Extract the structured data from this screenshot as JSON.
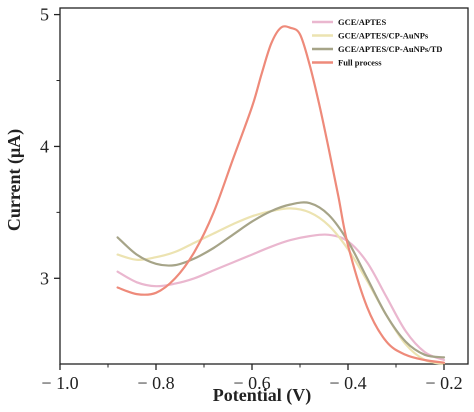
{
  "chart_data": {
    "type": "line",
    "xlabel": "Potential (V)",
    "ylabel": "Current (μA)",
    "xlim": [
      -1.0,
      -0.15
    ],
    "ylim": [
      2.35,
      5.05
    ],
    "xticks": [
      -1.0,
      -0.8,
      -0.6,
      -0.4,
      -0.2
    ],
    "xtick_labels": [
      "− 1.0",
      "− 0.8",
      "− 0.6",
      "− 0.4",
      "− 0.2"
    ],
    "yticks": [
      3,
      4,
      5
    ],
    "ytick_labels": [
      "3",
      "4",
      "5"
    ],
    "grid": false,
    "legend": "top-right",
    "series": [
      {
        "name": "GCE/APTES",
        "color": "#eab7cf",
        "x": [
          -0.88,
          -0.84,
          -0.8,
          -0.76,
          -0.72,
          -0.68,
          -0.64,
          -0.6,
          -0.56,
          -0.52,
          -0.48,
          -0.44,
          -0.4,
          -0.36,
          -0.32,
          -0.28,
          -0.24,
          -0.2
        ],
        "y": [
          3.05,
          2.97,
          2.94,
          2.96,
          3.0,
          3.06,
          3.12,
          3.18,
          3.24,
          3.29,
          3.32,
          3.33,
          3.28,
          3.12,
          2.86,
          2.6,
          2.44,
          2.38
        ]
      },
      {
        "name": "GCE/APTES/CP-AuNPs",
        "color": "#ece3b1",
        "x": [
          -0.88,
          -0.84,
          -0.8,
          -0.76,
          -0.72,
          -0.68,
          -0.64,
          -0.6,
          -0.56,
          -0.52,
          -0.48,
          -0.44,
          -0.4,
          -0.36,
          -0.32,
          -0.28,
          -0.24,
          -0.2
        ],
        "y": [
          3.18,
          3.14,
          3.16,
          3.2,
          3.27,
          3.34,
          3.41,
          3.47,
          3.51,
          3.53,
          3.5,
          3.4,
          3.22,
          2.98,
          2.72,
          2.5,
          2.38,
          2.35
        ]
      },
      {
        "name": "GCE/APTES/CP-AuNPs/TD",
        "color": "#a6a488",
        "x": [
          -0.88,
          -0.84,
          -0.8,
          -0.76,
          -0.72,
          -0.68,
          -0.64,
          -0.6,
          -0.56,
          -0.52,
          -0.48,
          -0.44,
          -0.4,
          -0.36,
          -0.32,
          -0.28,
          -0.24,
          -0.2
        ],
        "y": [
          3.31,
          3.18,
          3.11,
          3.1,
          3.15,
          3.23,
          3.33,
          3.43,
          3.51,
          3.56,
          3.57,
          3.48,
          3.28,
          3.0,
          2.72,
          2.52,
          2.42,
          2.4
        ]
      },
      {
        "name": "Full process",
        "color": "#ee8a7a",
        "x": [
          -0.88,
          -0.84,
          -0.8,
          -0.76,
          -0.72,
          -0.68,
          -0.64,
          -0.6,
          -0.58,
          -0.56,
          -0.54,
          -0.52,
          -0.5,
          -0.48,
          -0.46,
          -0.44,
          -0.42,
          -0.4,
          -0.36,
          -0.32,
          -0.28,
          -0.24,
          -0.2
        ],
        "y": [
          2.93,
          2.88,
          2.89,
          3.0,
          3.2,
          3.5,
          3.9,
          4.3,
          4.55,
          4.78,
          4.9,
          4.9,
          4.85,
          4.62,
          4.32,
          3.98,
          3.62,
          3.25,
          2.78,
          2.52,
          2.42,
          2.38,
          2.36
        ]
      }
    ]
  }
}
